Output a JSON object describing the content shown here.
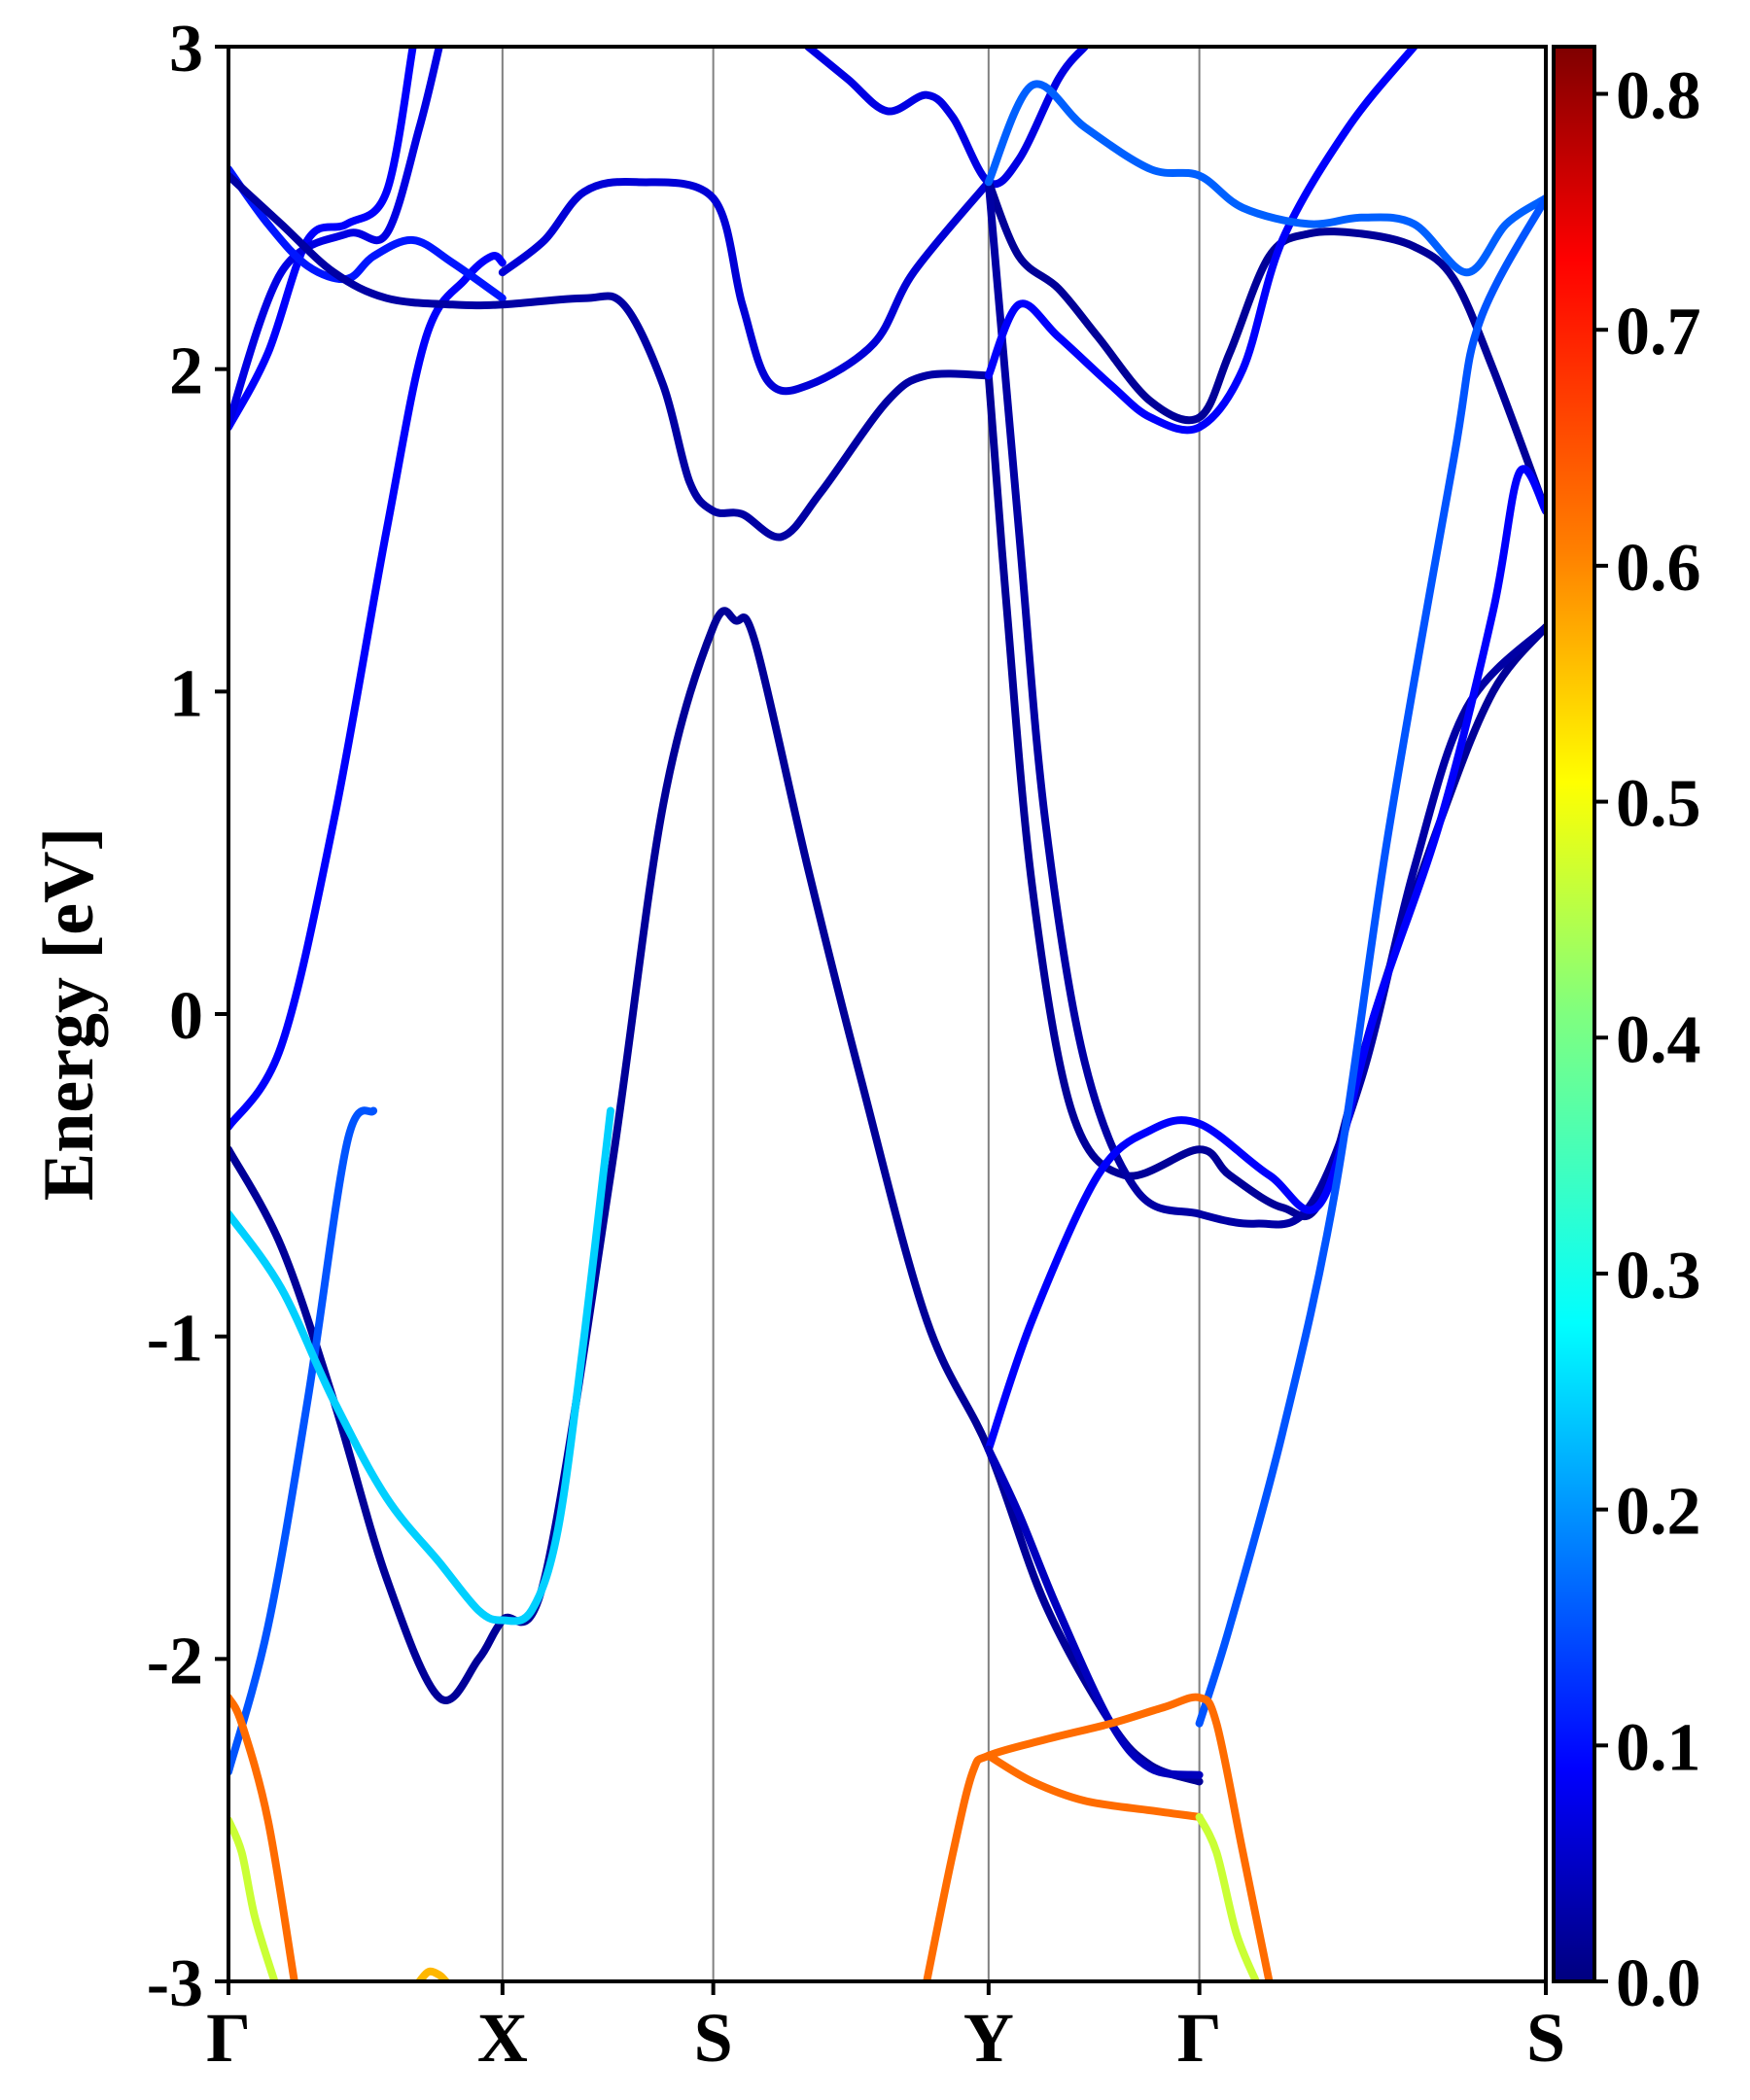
{
  "chart_data": {
    "type": "line",
    "title": "",
    "xlabel": "",
    "ylabel": "Energy [eV]",
    "ylim": [
      -3,
      3
    ],
    "grid": false,
    "legend": "none",
    "y_ticks": [
      {
        "value": 3,
        "label": "3"
      },
      {
        "value": 2,
        "label": "2"
      },
      {
        "value": 1,
        "label": "1"
      },
      {
        "value": 0,
        "label": "0"
      },
      {
        "value": -1,
        "label": "-1"
      },
      {
        "value": -2,
        "label": "-2"
      },
      {
        "value": -3,
        "label": "-3"
      }
    ],
    "k_path": [
      {
        "label": "Γ",
        "k": 0.0
      },
      {
        "label": "X",
        "k": 0.208
      },
      {
        "label": "S",
        "k": 0.368
      },
      {
        "label": "Y",
        "k": 0.577
      },
      {
        "label": "Γ",
        "k": 0.737
      },
      {
        "label": "S",
        "k": 1.0
      }
    ],
    "colorbar": {
      "range": [
        0.0,
        0.82
      ],
      "ticks": [
        {
          "value": 0.0,
          "label": "0.0"
        },
        {
          "value": 0.1,
          "label": "0.1"
        },
        {
          "value": 0.2,
          "label": "0.2"
        },
        {
          "value": 0.3,
          "label": "0.3"
        },
        {
          "value": 0.4,
          "label": "0.4"
        },
        {
          "value": 0.5,
          "label": "0.5"
        },
        {
          "value": 0.6,
          "label": "0.6"
        },
        {
          "value": 0.7,
          "label": "0.7"
        },
        {
          "value": 0.8,
          "label": "0.8"
        }
      ],
      "colormap": [
        "#00007f",
        "#0000ff",
        "#007fff",
        "#00ffff",
        "#7fff7f",
        "#ffff00",
        "#ff7f00",
        "#ff0000",
        "#7f0000"
      ]
    },
    "series": [
      {
        "w": 0.02,
        "points": [
          [
            0.0,
            -0.42
          ],
          [
            0.04,
            -0.72
          ],
          [
            0.08,
            -1.2
          ],
          [
            0.12,
            -1.75
          ],
          [
            0.16,
            -2.12
          ],
          [
            0.19,
            -2.0
          ],
          [
            0.208,
            -1.88
          ],
          [
            0.24,
            -1.75
          ],
          [
            0.29,
            -0.5
          ],
          [
            0.33,
            0.65
          ],
          [
            0.368,
            1.2
          ],
          [
            0.385,
            1.22
          ],
          [
            0.4,
            1.15
          ],
          [
            0.44,
            0.45
          ],
          [
            0.48,
            -0.2
          ],
          [
            0.53,
            -0.95
          ],
          [
            0.577,
            -1.35
          ],
          [
            0.62,
            -1.83
          ],
          [
            0.67,
            -2.2
          ],
          [
            0.7,
            -2.33
          ],
          [
            0.737,
            -2.38
          ]
        ]
      },
      {
        "w": 0.1,
        "points": [
          [
            0.0,
            -0.35
          ],
          [
            0.04,
            -0.1
          ],
          [
            0.08,
            0.6
          ],
          [
            0.12,
            1.5
          ],
          [
            0.15,
            2.1
          ],
          [
            0.18,
            2.28
          ],
          [
            0.2,
            2.35
          ],
          [
            0.208,
            2.33
          ]
        ]
      },
      {
        "w": 0.1,
        "points": [
          [
            0.0,
            1.82
          ],
          [
            0.03,
            2.05
          ],
          [
            0.06,
            2.4
          ],
          [
            0.09,
            2.45
          ],
          [
            0.12,
            2.55
          ],
          [
            0.14,
            3.0
          ]
        ]
      },
      {
        "w": 0.08,
        "points": [
          [
            0.0,
            1.83
          ],
          [
            0.04,
            2.3
          ],
          [
            0.09,
            2.42
          ],
          [
            0.12,
            2.42
          ],
          [
            0.145,
            2.75
          ],
          [
            0.16,
            3.0
          ]
        ]
      },
      {
        "w": 0.12,
        "points": [
          [
            0.0,
            2.62
          ],
          [
            0.03,
            2.45
          ],
          [
            0.06,
            2.32
          ],
          [
            0.09,
            2.28
          ],
          [
            0.11,
            2.35
          ],
          [
            0.14,
            2.4
          ],
          [
            0.17,
            2.33
          ],
          [
            0.208,
            2.22
          ]
        ]
      },
      {
        "w": 0.03,
        "points": [
          [
            0.0,
            2.6
          ],
          [
            0.04,
            2.45
          ],
          [
            0.08,
            2.3
          ],
          [
            0.12,
            2.22
          ],
          [
            0.17,
            2.2
          ],
          [
            0.208,
            2.2
          ],
          [
            0.27,
            2.22
          ],
          [
            0.3,
            2.2
          ],
          [
            0.33,
            1.95
          ],
          [
            0.35,
            1.65
          ],
          [
            0.368,
            1.56
          ],
          [
            0.39,
            1.55
          ],
          [
            0.42,
            1.48
          ],
          [
            0.45,
            1.62
          ],
          [
            0.5,
            1.9
          ],
          [
            0.53,
            1.98
          ],
          [
            0.577,
            1.98
          ]
        ]
      },
      {
        "w": 0.07,
        "points": [
          [
            0.208,
            2.3
          ],
          [
            0.24,
            2.4
          ],
          [
            0.27,
            2.55
          ],
          [
            0.31,
            2.58
          ],
          [
            0.368,
            2.53
          ],
          [
            0.39,
            2.2
          ],
          [
            0.41,
            1.96
          ],
          [
            0.44,
            1.95
          ],
          [
            0.49,
            2.08
          ],
          [
            0.52,
            2.3
          ],
          [
            0.577,
            2.58
          ]
        ]
      },
      {
        "w": 0.08,
        "points": [
          [
            0.44,
            3.0
          ],
          [
            0.47,
            2.9
          ],
          [
            0.5,
            2.8
          ],
          [
            0.53,
            2.85
          ],
          [
            0.55,
            2.78
          ],
          [
            0.577,
            2.58
          ],
          [
            0.6,
            2.65
          ],
          [
            0.63,
            2.9
          ],
          [
            0.65,
            3.0
          ]
        ]
      },
      {
        "w": 0.02,
        "points": [
          [
            0.577,
            2.58
          ],
          [
            0.6,
            2.35
          ],
          [
            0.63,
            2.25
          ],
          [
            0.66,
            2.1
          ],
          [
            0.7,
            1.9
          ],
          [
            0.737,
            1.85
          ],
          [
            0.76,
            2.05
          ],
          [
            0.79,
            2.35
          ],
          [
            0.82,
            2.42
          ],
          [
            0.86,
            2.42
          ],
          [
            0.9,
            2.38
          ],
          [
            0.93,
            2.28
          ],
          [
            0.96,
            2.0
          ],
          [
            1.0,
            1.56
          ]
        ]
      },
      {
        "w": 0.02,
        "points": [
          [
            0.577,
            1.98
          ],
          [
            0.59,
            1.3
          ],
          [
            0.61,
            0.4
          ],
          [
            0.64,
            -0.3
          ],
          [
            0.68,
            -0.5
          ],
          [
            0.737,
            -0.42
          ],
          [
            0.76,
            -0.5
          ],
          [
            0.8,
            -0.6
          ],
          [
            0.83,
            -0.57
          ],
          [
            0.87,
            0.0
          ],
          [
            0.92,
            0.6
          ],
          [
            0.96,
            1.0
          ],
          [
            1.0,
            1.2
          ]
        ]
      },
      {
        "w": 0.03,
        "points": [
          [
            0.577,
            2.58
          ],
          [
            0.6,
            1.5
          ],
          [
            0.62,
            0.6
          ],
          [
            0.65,
            -0.15
          ],
          [
            0.69,
            -0.55
          ],
          [
            0.737,
            -0.62
          ],
          [
            0.78,
            -0.65
          ],
          [
            0.82,
            -0.6
          ],
          [
            0.86,
            -0.2
          ],
          [
            0.9,
            0.45
          ],
          [
            0.94,
            0.95
          ],
          [
            1.0,
            1.2
          ]
        ]
      },
      {
        "w": 0.1,
        "points": [
          [
            0.577,
            1.98
          ],
          [
            0.6,
            2.2
          ],
          [
            0.63,
            2.1
          ],
          [
            0.67,
            1.95
          ],
          [
            0.7,
            1.85
          ],
          [
            0.737,
            1.82
          ],
          [
            0.77,
            2.0
          ],
          [
            0.8,
            2.4
          ],
          [
            0.85,
            2.75
          ],
          [
            0.9,
            3.0
          ]
        ]
      },
      {
        "w": 0.18,
        "points": [
          [
            0.577,
            2.58
          ],
          [
            0.61,
            2.88
          ],
          [
            0.65,
            2.75
          ],
          [
            0.7,
            2.62
          ],
          [
            0.737,
            2.6
          ],
          [
            0.77,
            2.5
          ],
          [
            0.82,
            2.45
          ],
          [
            0.86,
            2.47
          ],
          [
            0.9,
            2.45
          ],
          [
            0.94,
            2.3
          ],
          [
            0.97,
            2.45
          ],
          [
            1.0,
            2.53
          ]
        ]
      },
      {
        "w": 0.1,
        "points": [
          [
            0.577,
            -1.35
          ],
          [
            0.61,
            -0.95
          ],
          [
            0.66,
            -0.5
          ],
          [
            0.7,
            -0.36
          ],
          [
            0.737,
            -0.34
          ],
          [
            0.79,
            -0.5
          ],
          [
            0.83,
            -0.58
          ],
          [
            0.87,
            0.0
          ],
          [
            0.92,
            0.6
          ],
          [
            0.96,
            1.25
          ],
          [
            0.98,
            1.68
          ],
          [
            1.0,
            1.56
          ]
        ]
      },
      {
        "w": 0.05,
        "points": [
          [
            0.577,
            -1.35
          ],
          [
            0.6,
            -1.55
          ],
          [
            0.63,
            -1.85
          ],
          [
            0.67,
            -2.2
          ],
          [
            0.7,
            -2.34
          ],
          [
            0.737,
            -2.36
          ]
        ]
      },
      {
        "w": 0.17,
        "points": [
          [
            0.737,
            -2.2
          ],
          [
            0.76,
            -1.9
          ],
          [
            0.8,
            -1.3
          ],
          [
            0.84,
            -0.55
          ],
          [
            0.88,
            0.55
          ],
          [
            0.93,
            1.72
          ],
          [
            0.95,
            2.15
          ],
          [
            1.0,
            2.53
          ]
        ]
      },
      {
        "w": 0.17,
        "points": [
          [
            0.0,
            -2.35
          ],
          [
            0.03,
            -1.9
          ],
          [
            0.06,
            -1.2
          ],
          [
            0.09,
            -0.4
          ],
          [
            0.11,
            -0.3
          ]
        ]
      },
      {
        "w": 0.27,
        "points": [
          [
            0.0,
            -0.62
          ],
          [
            0.04,
            -0.85
          ],
          [
            0.08,
            -1.2
          ],
          [
            0.12,
            -1.5
          ],
          [
            0.16,
            -1.7
          ],
          [
            0.19,
            -1.85
          ],
          [
            0.208,
            -1.88
          ],
          [
            0.23,
            -1.85
          ],
          [
            0.25,
            -1.6
          ],
          [
            0.27,
            -1.0
          ],
          [
            0.29,
            -0.3
          ]
        ]
      },
      {
        "w": 0.63,
        "points": [
          [
            0.0,
            -2.12
          ],
          [
            0.01,
            -2.2
          ],
          [
            0.03,
            -2.5
          ],
          [
            0.05,
            -3.0
          ]
        ]
      },
      {
        "w": 0.47,
        "points": [
          [
            0.0,
            -2.5
          ],
          [
            0.01,
            -2.6
          ],
          [
            0.02,
            -2.8
          ],
          [
            0.035,
            -3.0
          ]
        ]
      },
      {
        "w": 0.63,
        "points": [
          [
            0.53,
            -3.0
          ],
          [
            0.55,
            -2.6
          ],
          [
            0.565,
            -2.35
          ],
          [
            0.577,
            -2.3
          ],
          [
            0.62,
            -2.25
          ],
          [
            0.67,
            -2.2
          ],
          [
            0.71,
            -2.15
          ],
          [
            0.737,
            -2.12
          ],
          [
            0.75,
            -2.2
          ],
          [
            0.77,
            -2.6
          ],
          [
            0.79,
            -3.0
          ]
        ]
      },
      {
        "w": 0.63,
        "points": [
          [
            0.577,
            -2.3
          ],
          [
            0.61,
            -2.38
          ],
          [
            0.65,
            -2.44
          ],
          [
            0.7,
            -2.47
          ],
          [
            0.737,
            -2.49
          ]
        ]
      },
      {
        "w": 0.47,
        "points": [
          [
            0.737,
            -2.49
          ],
          [
            0.75,
            -2.6
          ],
          [
            0.765,
            -2.85
          ],
          [
            0.78,
            -3.0
          ]
        ]
      },
      {
        "w": 0.57,
        "points": [
          [
            0.145,
            -3.0
          ],
          [
            0.152,
            -2.97
          ],
          [
            0.16,
            -2.98
          ],
          [
            0.165,
            -3.0
          ]
        ]
      }
    ]
  }
}
